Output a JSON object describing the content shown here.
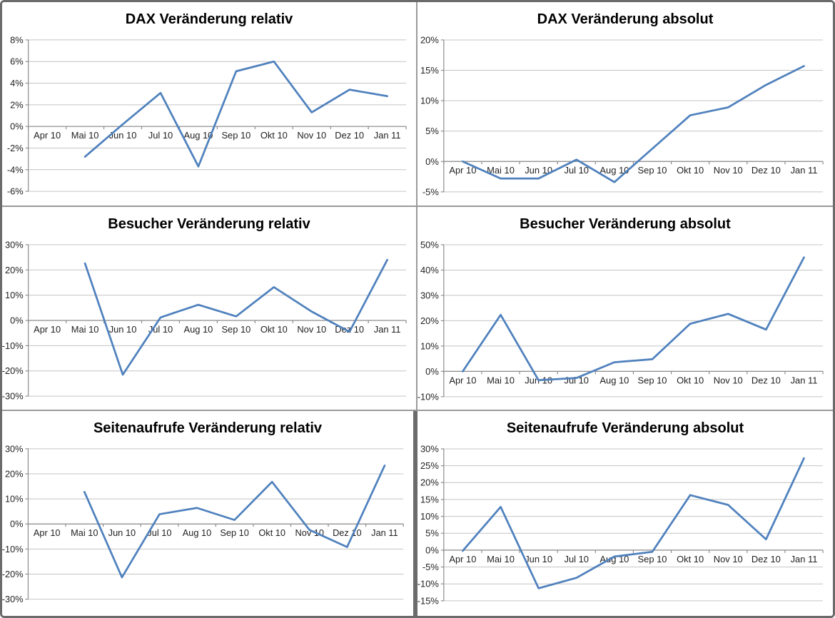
{
  "colors": {
    "line": "#4F81BD",
    "grid": "#C4C4C4",
    "axis": "#8C8C8C",
    "frame": "#6B6B6B",
    "separator": "#9A9A9A",
    "tick_text": "#1F1F1F",
    "title_text": "#000000"
  },
  "chart_data": [
    {
      "type": "line",
      "title": "DAX Veränderung relativ",
      "categories": [
        "Apr 10",
        "Mai 10",
        "Jun 10",
        "Jul 10",
        "Aug 10",
        "Sep 10",
        "Okt 10",
        "Nov 10",
        "Dez 10",
        "Jan 11"
      ],
      "values": [
        null,
        -2.8,
        0.2,
        3.1,
        -3.7,
        5.1,
        6.0,
        1.3,
        3.4,
        2.8
      ],
      "ylim": [
        -6,
        8
      ],
      "ystep": 2,
      "y_tick_labels": [
        "8%",
        "6%",
        "4%",
        "2%",
        "0%",
        "-2%",
        "-4%",
        "-6%"
      ],
      "xlabel": "",
      "ylabel": "",
      "grid": true,
      "legend": "none"
    },
    {
      "type": "line",
      "title": "DAX Veränderung absolut",
      "categories": [
        "Apr 10",
        "Mai 10",
        "Jun 10",
        "Jul 10",
        "Aug 10",
        "Sep 10",
        "Okt 10",
        "Nov 10",
        "Dez 10",
        "Jan 11"
      ],
      "values": [
        0.0,
        -2.8,
        -2.8,
        0.3,
        -3.4,
        2.1,
        7.6,
        8.9,
        12.6,
        15.7
      ],
      "ylim": [
        -5,
        20
      ],
      "ystep": 5,
      "y_tick_labels": [
        "20%",
        "15%",
        "10%",
        "5%",
        "0%",
        "-5%"
      ],
      "xlabel": "",
      "ylabel": "",
      "grid": true,
      "legend": "none"
    },
    {
      "type": "line",
      "title": "Besucher Veränderung relativ",
      "categories": [
        "Apr 10",
        "Mai 10",
        "Jun 10",
        "Jul 10",
        "Aug 10",
        "Sep 10",
        "Okt 10",
        "Nov 10",
        "Dez 10",
        "Jan 11"
      ],
      "values": [
        null,
        22.6,
        -21.5,
        1.2,
        6.2,
        1.6,
        13.2,
        3.5,
        -4.5,
        24.0
      ],
      "ylim": [
        -30,
        30
      ],
      "ystep": 10,
      "y_tick_labels": [
        "30%",
        "20%",
        "10%",
        "0%",
        "-10%",
        "-20%",
        "-30%"
      ],
      "xlabel": "",
      "ylabel": "",
      "grid": true,
      "legend": "none"
    },
    {
      "type": "line",
      "title": "Besucher Veränderung absolut",
      "categories": [
        "Apr 10",
        "Mai 10",
        "Jun 10",
        "Jul 10",
        "Aug 10",
        "Sep 10",
        "Okt 10",
        "Nov 10",
        "Dez 10",
        "Jan 11"
      ],
      "values": [
        0.0,
        22.3,
        -3.5,
        -2.6,
        3.6,
        4.8,
        18.8,
        22.7,
        16.5,
        45.0
      ],
      "ylim": [
        -10,
        50
      ],
      "ystep": 10,
      "y_tick_labels": [
        "50%",
        "40%",
        "30%",
        "20%",
        "10%",
        "0%",
        "-10%"
      ],
      "xlabel": "",
      "ylabel": "",
      "grid": true,
      "legend": "none"
    },
    {
      "type": "line",
      "title": "Seitenaufrufe Veränderung relativ",
      "categories": [
        "Apr 10",
        "Mai 10",
        "Jun 10",
        "Jul 10",
        "Aug 10",
        "Sep 10",
        "Okt 10",
        "Nov 10",
        "Dez 10",
        "Jan 11"
      ],
      "values": [
        null,
        12.8,
        -21.3,
        3.9,
        6.4,
        1.6,
        16.8,
        -2.4,
        -9.2,
        23.3
      ],
      "ylim": [
        -30,
        30
      ],
      "ystep": 10,
      "y_tick_labels": [
        "30%",
        "20%",
        "10%",
        "0%",
        "-10%",
        "-20%",
        "-30%"
      ],
      "xlabel": "",
      "ylabel": "",
      "grid": true,
      "legend": "none"
    },
    {
      "type": "line",
      "title": "Seitenaufrufe Veränderung absolut",
      "categories": [
        "Apr 10",
        "Mai 10",
        "Jun 10",
        "Jul 10",
        "Aug 10",
        "Sep 10",
        "Okt 10",
        "Nov 10",
        "Dez 10",
        "Jan 11"
      ],
      "values": [
        -0.2,
        12.8,
        -11.3,
        -8.2,
        -1.9,
        -0.5,
        16.3,
        13.4,
        3.2,
        27.2
      ],
      "ylim": [
        -15,
        30
      ],
      "ystep": 5,
      "y_tick_labels": [
        "30%",
        "25%",
        "20%",
        "15%",
        "10%",
        "5%",
        "0%",
        "-5%",
        "-10%",
        "-15%"
      ],
      "xlabel": "",
      "ylabel": "",
      "grid": true,
      "legend": "none"
    }
  ]
}
